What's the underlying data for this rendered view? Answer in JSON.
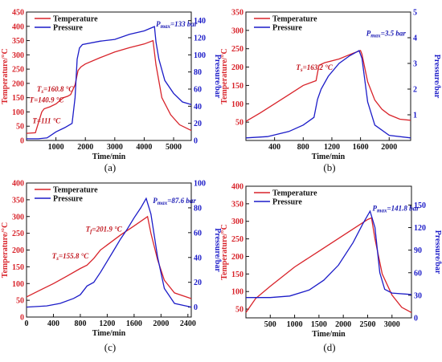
{
  "colors": {
    "temperature": "#d8232a",
    "pressure": "#1c1cc8",
    "annot_red": "#c0141c",
    "annot_blue": "#1a1ab4"
  },
  "chart_data": [
    {
      "id": "a",
      "type": "line",
      "caption": "(a)",
      "xlabel": "Time/min",
      "ylabel_left": "Temperature/°C",
      "ylabel_right": "Pressure/bar",
      "xlim": [
        0,
        5600
      ],
      "ylim_left": [
        0,
        450
      ],
      "ylim_right": [
        0,
        150
      ],
      "xticks": [
        1000,
        2000,
        3000,
        4000,
        5000
      ],
      "yticks_left": [
        0,
        50,
        100,
        150,
        200,
        250,
        300,
        350,
        400,
        450
      ],
      "yticks_right": [
        0,
        20,
        40,
        60,
        80,
        100,
        120,
        140
      ],
      "legend": [
        "Temperature",
        "Pressure"
      ],
      "grid": false,
      "series": [
        {
          "name": "Temperature",
          "axis": "left",
          "points": [
            [
              0,
              25
            ],
            [
              300,
              27
            ],
            [
              520,
              100
            ],
            [
              600,
              111
            ],
            [
              800,
              118
            ],
            [
              1000,
              128
            ],
            [
              1150,
              141
            ],
            [
              1250,
              150
            ],
            [
              1400,
              155
            ],
            [
              1500,
              161
            ],
            [
              1650,
              195
            ],
            [
              1750,
              245
            ],
            [
              1850,
              258
            ],
            [
              2000,
              268
            ],
            [
              2500,
              290
            ],
            [
              3000,
              310
            ],
            [
              3500,
              325
            ],
            [
              4000,
              338
            ],
            [
              4300,
              350
            ],
            [
              4400,
              265
            ],
            [
              4600,
              150
            ],
            [
              4900,
              90
            ],
            [
              5200,
              55
            ],
            [
              5600,
              35
            ]
          ]
        },
        {
          "name": "Pressure",
          "axis": "right",
          "points": [
            [
              0,
              2
            ],
            [
              400,
              2
            ],
            [
              700,
              3
            ],
            [
              1000,
              10
            ],
            [
              1300,
              15
            ],
            [
              1550,
              20
            ],
            [
              1650,
              50
            ],
            [
              1720,
              95
            ],
            [
              1800,
              108
            ],
            [
              1900,
              112
            ],
            [
              2500,
              116
            ],
            [
              3000,
              118
            ],
            [
              3500,
              124
            ],
            [
              4000,
              128
            ],
            [
              4350,
              133
            ],
            [
              4400,
              115
            ],
            [
              4500,
              95
            ],
            [
              4700,
              70
            ],
            [
              5000,
              55
            ],
            [
              5300,
              45
            ],
            [
              5600,
              42
            ]
          ]
        }
      ],
      "annotations": [
        {
          "text": "P",
          "sub": "max",
          "value": "=133 bar",
          "color": "blue",
          "x": 4400,
          "y_left": 400
        },
        {
          "text": "T",
          "sub": "s",
          "value": "=160.8 °C",
          "color": "red",
          "x": 350,
          "y_left": 172
        },
        {
          "text": "T",
          "sub": "",
          "value": "=140.9 °C",
          "color": "red",
          "x": 100,
          "y_left": 133
        },
        {
          "text": "T",
          "sub": "",
          "value": "=111 °C",
          "color": "red",
          "x": 200,
          "y_left": 60
        }
      ]
    },
    {
      "id": "b",
      "type": "line",
      "caption": "(b)",
      "xlabel": "Time/min",
      "ylabel_left": "Temperature/°C",
      "ylabel_right": "Pressure/bar",
      "xlim": [
        0,
        2300
      ],
      "ylim_left": [
        0,
        350
      ],
      "ylim_right": [
        0,
        5
      ],
      "xticks": [
        400,
        800,
        1200,
        1600,
        2000
      ],
      "yticks_left": [
        50,
        100,
        150,
        200,
        250,
        300,
        350
      ],
      "yticks_right": [
        1,
        2,
        3,
        4,
        5
      ],
      "legend": [
        "Temperature",
        "Pressure"
      ],
      "grid": false,
      "series": [
        {
          "name": "Temperature",
          "axis": "left",
          "points": [
            [
              0,
              52
            ],
            [
              200,
              75
            ],
            [
              400,
              100
            ],
            [
              600,
              125
            ],
            [
              800,
              150
            ],
            [
              980,
              163
            ],
            [
              1020,
              205
            ],
            [
              1100,
              212
            ],
            [
              1300,
              222
            ],
            [
              1500,
              238
            ],
            [
              1600,
              245
            ],
            [
              1620,
              235
            ],
            [
              1700,
              160
            ],
            [
              1800,
              110
            ],
            [
              1900,
              85
            ],
            [
              2000,
              70
            ],
            [
              2150,
              58
            ],
            [
              2300,
              55
            ]
          ]
        },
        {
          "name": "Pressure",
          "axis": "right",
          "points": [
            [
              0,
              0.1
            ],
            [
              300,
              0.15
            ],
            [
              600,
              0.35
            ],
            [
              800,
              0.6
            ],
            [
              950,
              0.9
            ],
            [
              1000,
              1.6
            ],
            [
              1050,
              2.0
            ],
            [
              1150,
              2.5
            ],
            [
              1300,
              3.0
            ],
            [
              1450,
              3.3
            ],
            [
              1580,
              3.5
            ],
            [
              1620,
              3.2
            ],
            [
              1700,
              1.5
            ],
            [
              1800,
              0.6
            ],
            [
              2000,
              0.2
            ],
            [
              2300,
              0.1
            ]
          ]
        }
      ],
      "annotations": [
        {
          "text": "P",
          "sub": "max",
          "value": "=3.5 bar",
          "color": "blue",
          "x": 1680,
          "y_left": 285
        },
        {
          "text": "T",
          "sub": "s",
          "value": "=163.2 °C",
          "color": "red",
          "x": 700,
          "y_left": 192
        }
      ]
    },
    {
      "id": "c",
      "type": "line",
      "caption": "(c)",
      "xlabel": "Time/min",
      "ylabel_left": "Temperature/°C",
      "ylabel_right": "Pressure/bar",
      "xlim": [
        0,
        2450
      ],
      "ylim_left": [
        0,
        400
      ],
      "ylim_right": [
        -8,
        100
      ],
      "xticks": [
        0,
        400,
        800,
        1200,
        1600,
        2000,
        2400
      ],
      "yticks_left": [
        0,
        50,
        100,
        150,
        200,
        250,
        300,
        350,
        400
      ],
      "yticks_right": [
        0,
        20,
        40,
        60,
        80,
        100
      ],
      "legend": [
        "Temperature",
        "Pressure"
      ],
      "grid": false,
      "series": [
        {
          "name": "Temperature",
          "axis": "left",
          "points": [
            [
              0,
              60
            ],
            [
              200,
              80
            ],
            [
              400,
              100
            ],
            [
              600,
              122
            ],
            [
              800,
              145
            ],
            [
              900,
              155
            ],
            [
              1000,
              175
            ],
            [
              1100,
              200
            ],
            [
              1200,
              215
            ],
            [
              1400,
              245
            ],
            [
              1600,
              272
            ],
            [
              1800,
              300
            ],
            [
              1850,
              250
            ],
            [
              1950,
              170
            ],
            [
              2050,
              110
            ],
            [
              2200,
              72
            ],
            [
              2450,
              55
            ]
          ]
        },
        {
          "name": "Pressure",
          "axis": "right",
          "points": [
            [
              0,
              0
            ],
            [
              300,
              1
            ],
            [
              500,
              3
            ],
            [
              700,
              7
            ],
            [
              800,
              10
            ],
            [
              900,
              17
            ],
            [
              1000,
              20
            ],
            [
              1100,
              28
            ],
            [
              1200,
              37
            ],
            [
              1300,
              46
            ],
            [
              1400,
              55
            ],
            [
              1500,
              63
            ],
            [
              1600,
              72
            ],
            [
              1700,
              80
            ],
            [
              1780,
              87.6
            ],
            [
              1850,
              75
            ],
            [
              1950,
              40
            ],
            [
              2050,
              15
            ],
            [
              2200,
              3
            ],
            [
              2450,
              0
            ]
          ]
        }
      ],
      "annotations": [
        {
          "text": "P",
          "sub": "max",
          "value": "=87.6 bar",
          "color": "blue",
          "x": 1880,
          "y_left": 340
        },
        {
          "text": "T",
          "sub": "f",
          "value": "=201.9 °C",
          "color": "red",
          "x": 880,
          "y_left": 255
        },
        {
          "text": "T",
          "sub": "s",
          "value": "=155.8 °C",
          "color": "red",
          "x": 380,
          "y_left": 175
        }
      ]
    },
    {
      "id": "d",
      "type": "line",
      "caption": "(d)",
      "xlabel": "Time/min",
      "ylabel_left": "Temperature/°C",
      "ylabel_right": "Pressure/bar",
      "xlim": [
        0,
        3400
      ],
      "ylim_left": [
        25,
        400
      ],
      "ylim_right": [
        0,
        175
      ],
      "xticks": [
        500,
        1000,
        1500,
        2000,
        2500,
        3000
      ],
      "yticks_left": [
        50,
        100,
        150,
        200,
        250,
        300,
        350,
        400
      ],
      "yticks_right": [
        0,
        30,
        60,
        90,
        120,
        150
      ],
      "legend": [
        "Temperature",
        "Pressure"
      ],
      "grid": false,
      "series": [
        {
          "name": "Temperature",
          "axis": "left",
          "points": [
            [
              0,
              40
            ],
            [
              200,
              80
            ],
            [
              500,
              115
            ],
            [
              1000,
              170
            ],
            [
              1500,
              215
            ],
            [
              2000,
              260
            ],
            [
              2500,
              305
            ],
            [
              2580,
              310
            ],
            [
              2650,
              250
            ],
            [
              2800,
              150
            ],
            [
              3000,
              90
            ],
            [
              3200,
              55
            ],
            [
              3400,
              40
            ]
          ]
        },
        {
          "name": "Pressure",
          "axis": "right",
          "points": [
            [
              0,
              27
            ],
            [
              500,
              27
            ],
            [
              900,
              29
            ],
            [
              1300,
              37
            ],
            [
              1600,
              50
            ],
            [
              1900,
              70
            ],
            [
              2200,
              100
            ],
            [
              2400,
              125
            ],
            [
              2550,
              141.8
            ],
            [
              2650,
              120
            ],
            [
              2750,
              60
            ],
            [
              2850,
              38
            ],
            [
              3000,
              33
            ],
            [
              3400,
              31
            ]
          ]
        }
      ],
      "annotations": [
        {
          "text": "P",
          "sub": "max",
          "value": "=141.8 bar",
          "color": "blue",
          "x": 2600,
          "y_left": 330
        }
      ]
    }
  ]
}
